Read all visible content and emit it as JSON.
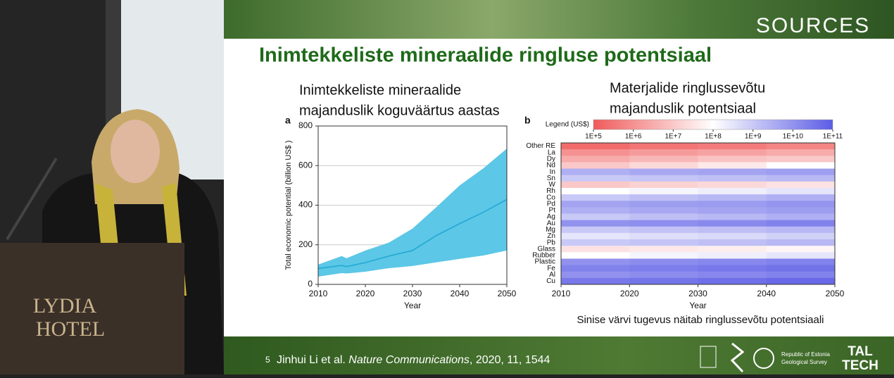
{
  "venue_sign": [
    "LYDIA",
    "HOTEL"
  ],
  "slide": {
    "logo": "SOURCES",
    "title": "Inimtekkeliste mineraalide ringluse potentsiaal",
    "caption": "Sinise värvi tugevus näitab ringlussevõtu potentsiaali",
    "page_number": "5",
    "citation": {
      "authors": "Jinhui Li et al.",
      "journal": "Nature Communications",
      "details": ", 2020, 11, 1544"
    },
    "partner_logos": [
      "Republic of Estonia",
      "Geological Survey",
      "TAL",
      "TECH"
    ]
  },
  "chart_data": [
    {
      "type": "line",
      "panel": "a",
      "title": [
        "Inimtekkeliste mineraalide",
        "majanduslik koguväärtus aastas"
      ],
      "x_label": "Year",
      "y_label": "Total economic potential (billion US$ )",
      "x": [
        2010,
        2015,
        2016,
        2020,
        2025,
        2030,
        2035,
        2040,
        2045,
        2050
      ],
      "series": [
        {
          "color": "#1fa8d2",
          "band_color": "#5cc7e6",
          "values": [
            80,
            96,
            90,
            110,
            143,
            171,
            246,
            307,
            364,
            429
          ],
          "lower": [
            39,
            57,
            55,
            64,
            82,
            93,
            111,
            129,
            146,
            171
          ],
          "upper": [
            100,
            143,
            132,
            171,
            211,
            282,
            389,
            500,
            586,
            686
          ]
        }
      ],
      "xlim": [
        2010,
        2050
      ],
      "xticks": [
        2010,
        2020,
        2030,
        2040,
        2050
      ],
      "ylim": [
        0,
        800
      ],
      "yticks": [
        0,
        200,
        400,
        600,
        800
      ],
      "grid": true
    },
    {
      "type": "heatmap",
      "panel": "b",
      "title": [
        "Materjalide ringlussevõtu",
        "majanduslik potentsiaal"
      ],
      "x_label": "Year",
      "legend_title": "Legend (US$)",
      "log_scale": true,
      "colormap": [
        "#f05a5a",
        "#ffffff",
        "#5c5ce6"
      ],
      "clim": [
        100000,
        100000000000
      ],
      "cticks": [
        {
          "value": 100000,
          "label": "1E+5"
        },
        {
          "value": 1000000,
          "label": "1E+6"
        },
        {
          "value": 10000000,
          "label": "1E+7"
        },
        {
          "value": 100000000,
          "label": "1E+8"
        },
        {
          "value": 1000000000,
          "label": "1E+9"
        },
        {
          "value": 10000000000,
          "label": "1E+10"
        },
        {
          "value": 100000000000,
          "label": "1E+11"
        }
      ],
      "x": [
        2015,
        2025,
        2035,
        2045
      ],
      "xlim": [
        2010,
        2050
      ],
      "xticks": [
        2010,
        2020,
        2030,
        2040,
        2050
      ],
      "series": [
        {
          "name": "Other RE",
          "values": [
            200000,
            300000,
            400000,
            600000
          ]
        },
        {
          "name": "La",
          "values": [
            1000000,
            1500000,
            2000000,
            3000000
          ]
        },
        {
          "name": "Dy",
          "values": [
            3000000,
            5000000,
            8000000,
            10000000
          ]
        },
        {
          "name": "Nd",
          "values": [
            10000000,
            20000000,
            40000000,
            100000000
          ]
        },
        {
          "name": "In",
          "values": [
            3000000000,
            4000000000,
            5000000000,
            6000000000
          ]
        },
        {
          "name": "Sn",
          "values": [
            1000000000,
            1200000000,
            1500000000,
            2000000000
          ]
        },
        {
          "name": "W",
          "values": [
            10000000,
            15000000,
            20000000,
            30000000
          ]
        },
        {
          "name": "Rh",
          "values": [
            100000000,
            150000000,
            200000000,
            300000000
          ]
        },
        {
          "name": "Co",
          "values": [
            1000000000,
            1500000000,
            2000000000,
            3000000000
          ]
        },
        {
          "name": "Pd",
          "values": [
            5000000000,
            6000000000,
            7000000000,
            9000000000
          ]
        },
        {
          "name": "Pt",
          "values": [
            3000000000,
            4000000000,
            5000000000,
            6000000000
          ]
        },
        {
          "name": "Ag",
          "values": [
            1000000000,
            1500000000,
            2000000000,
            3000000000
          ]
        },
        {
          "name": "Au",
          "values": [
            10000000000,
            12000000000,
            15000000000,
            20000000000
          ]
        },
        {
          "name": "Mg",
          "values": [
            1000000000,
            1300000000,
            1600000000,
            2000000000
          ]
        },
        {
          "name": "Zn",
          "values": [
            300000000,
            400000000,
            500000000,
            700000000
          ]
        },
        {
          "name": "Pb",
          "values": [
            1000000000,
            1200000000,
            1500000000,
            2000000000
          ]
        },
        {
          "name": "Glass",
          "values": [
            30000000,
            40000000,
            50000000,
            70000000
          ]
        },
        {
          "name": "Rubber",
          "values": [
            100000000,
            150000000,
            200000000,
            300000000
          ]
        },
        {
          "name": "Plastic",
          "values": [
            10000000000,
            13000000000,
            16000000000,
            20000000000
          ]
        },
        {
          "name": "Fe",
          "values": [
            20000000000,
            25000000000,
            30000000000,
            40000000000
          ]
        },
        {
          "name": "Al",
          "values": [
            10000000000,
            13000000000,
            16000000000,
            20000000000
          ]
        },
        {
          "name": "Cu",
          "values": [
            30000000000,
            35000000000,
            45000000000,
            60000000000
          ]
        }
      ]
    }
  ]
}
